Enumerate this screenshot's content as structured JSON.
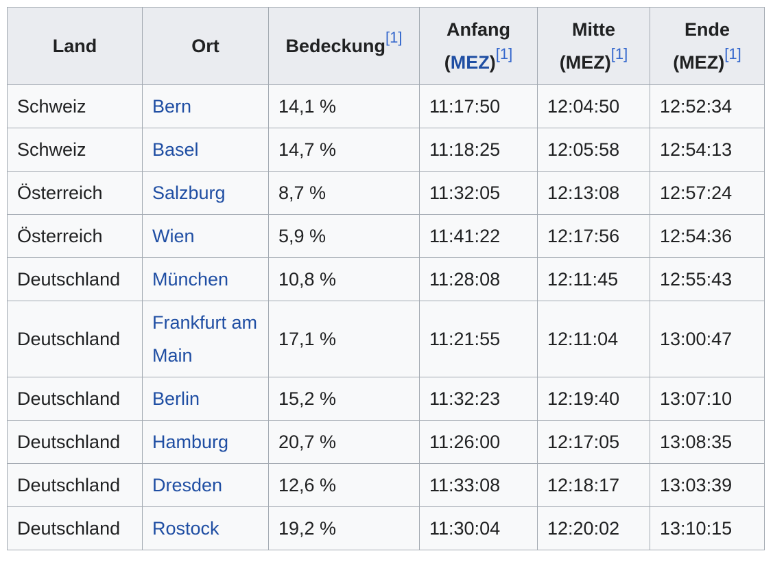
{
  "table": {
    "header": [
      {
        "label": "Land"
      },
      {
        "label": "Ort"
      },
      {
        "label": "Bedeckung",
        "ref": "[1]"
      },
      {
        "label": "Anfang",
        "unit": [
          "(",
          "MEZ",
          ")"
        ],
        "ref": "[1]"
      },
      {
        "label": "Mitte",
        "unit": [
          "(MEZ)"
        ],
        "ref": "[1]"
      },
      {
        "label": "Ende",
        "unit": [
          "(MEZ)"
        ],
        "ref": "[1]"
      }
    ],
    "rows": [
      [
        "Schweiz",
        "Bern",
        "14,1 %",
        "11:17:50",
        "12:04:50",
        "12:52:34"
      ],
      [
        "Schweiz",
        "Basel",
        "14,7 %",
        "11:18:25",
        "12:05:58",
        "12:54:13"
      ],
      [
        "Österreich",
        "Salzburg",
        "8,7 %",
        "11:32:05",
        "12:13:08",
        "12:57:24"
      ],
      [
        "Österreich",
        "Wien",
        "5,9 %",
        "11:41:22",
        "12:17:56",
        "12:54:36"
      ],
      [
        "Deutschland",
        "München",
        "10,8 %",
        "11:28:08",
        "12:11:45",
        "12:55:43"
      ],
      [
        "Deutschland",
        "Frankfurt am Main",
        "17,1 %",
        "11:21:55",
        "12:11:04",
        "13:00:47"
      ],
      [
        "Deutschland",
        "Berlin",
        "15,2 %",
        "11:32:23",
        "12:19:40",
        "13:07:10"
      ],
      [
        "Deutschland",
        "Hamburg",
        "20,7 %",
        "11:26:00",
        "12:17:05",
        "13:08:35"
      ],
      [
        "Deutschland",
        "Dresden",
        "12,6 %",
        "11:33:08",
        "12:18:17",
        "13:03:39"
      ],
      [
        "Deutschland",
        "Rostock",
        "19,2 %",
        "11:30:04",
        "12:20:02",
        "13:10:15"
      ]
    ]
  }
}
